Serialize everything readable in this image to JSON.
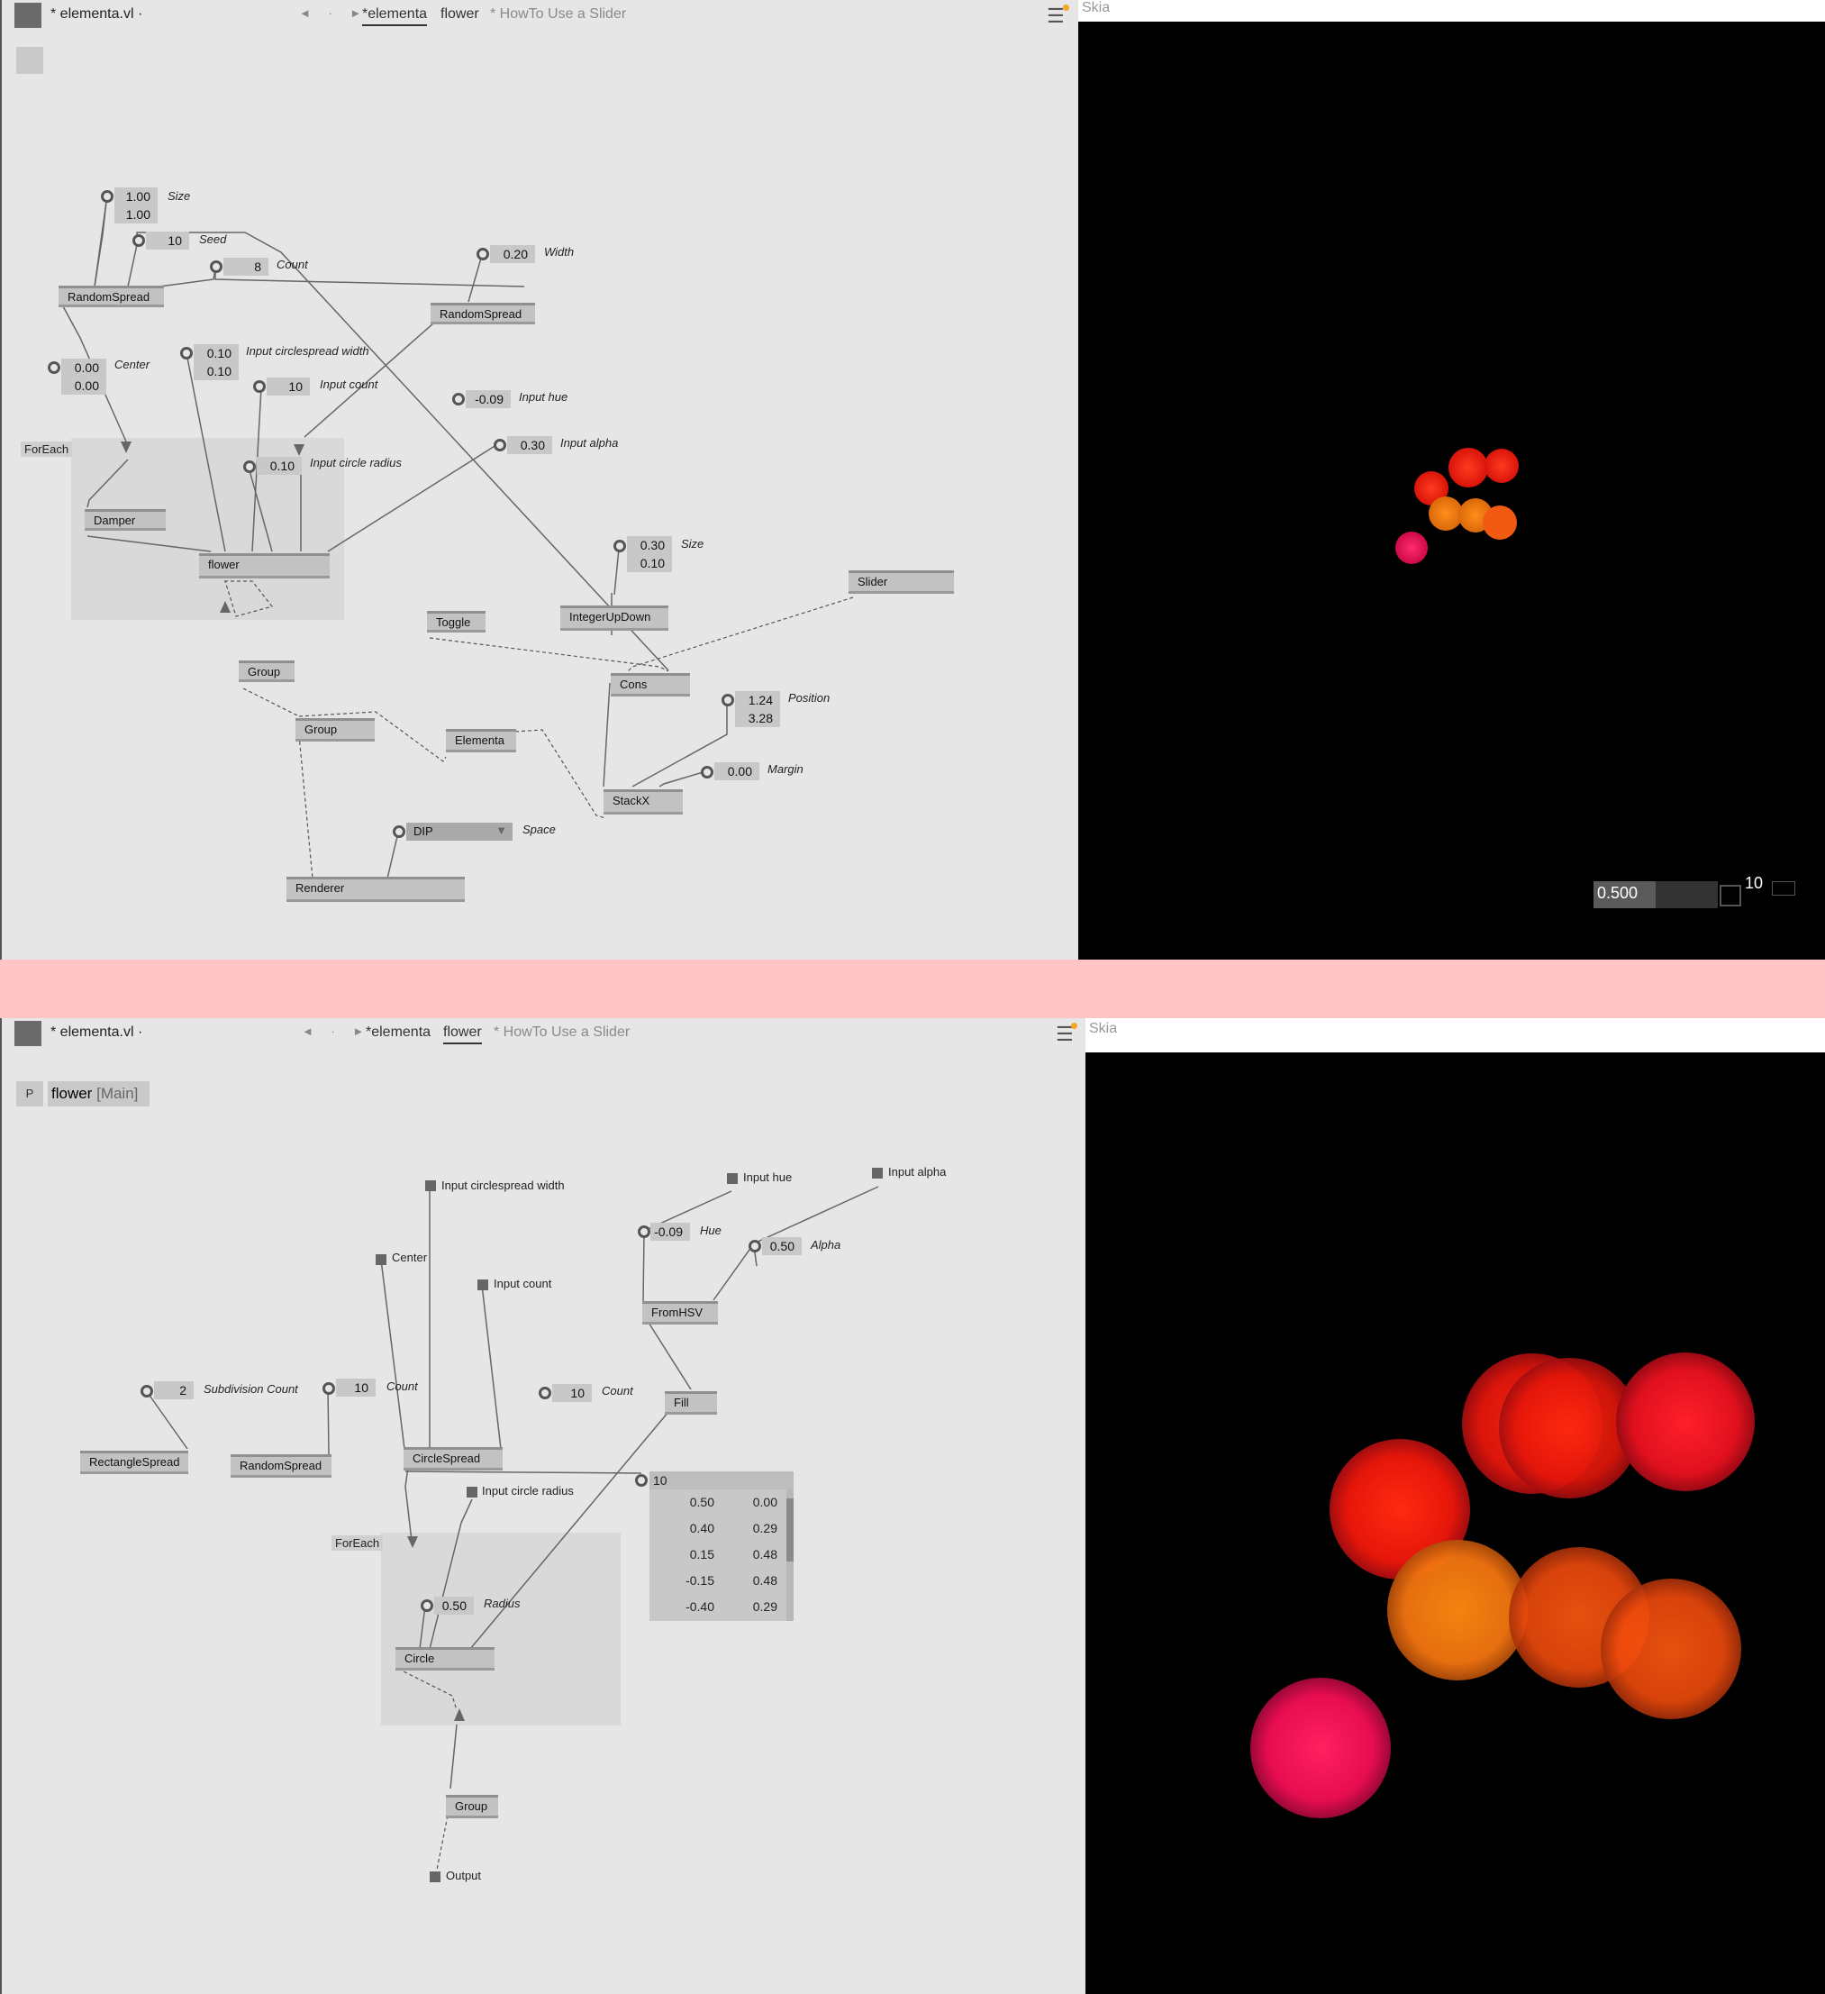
{
  "top": {
    "doc_title": "* elementa.vl ·",
    "nav_arrows": "◄ · ►",
    "tabs": [
      "*elementa",
      "flower",
      "* HowTo Use a Slider"
    ],
    "render_title": "Skia",
    "foreach_label": "ForEach",
    "nodes": {
      "randomspread1": "RandomSpread",
      "randomspread2": "RandomSpread",
      "damper": "Damper",
      "flower": "flower",
      "group1": "Group",
      "group2": "Group",
      "elementa": "Elementa",
      "renderer": "Renderer",
      "toggle": "Toggle",
      "integerupdown": "IntegerUpDown",
      "slider": "Slider",
      "cons": "Cons",
      "stackx": "StackX"
    },
    "iobox": {
      "size_x": "1.00",
      "size_y": "1.00",
      "size_label": "Size",
      "seed": "10",
      "seed_label": "Seed",
      "count": "8",
      "count_label": "Count",
      "width": "0.20",
      "width_label": "Width",
      "center_x": "0.00",
      "center_y": "0.00",
      "center_label": "Center",
      "csw_x": "0.10",
      "csw_y": "0.10",
      "csw_label": "Input circlespread width",
      "input_count": "10",
      "input_count_label": "Input count",
      "input_hue": "-0.09",
      "input_hue_label": "Input hue",
      "input_alpha": "0.30",
      "input_alpha_label": "Input alpha",
      "circle_radius": "0.10",
      "circle_radius_label": "Input circle radius",
      "size2_x": "0.30",
      "size2_y": "0.10",
      "size2_label": "Size",
      "position_x": "1.24",
      "position_y": "3.28",
      "position_label": "Position",
      "margin": "0.00",
      "margin_label": "Margin",
      "space": "DIP",
      "space_label": "Space"
    },
    "overlay": {
      "slider_value": "0.500",
      "int_value": "10",
      "slider_fill": 0.5
    }
  },
  "bottom": {
    "doc_title": "* elementa.vl ·",
    "nav_arrows": "◄ · ►",
    "tabs": [
      "*elementa",
      "flower",
      "* HowTo Use a Slider"
    ],
    "render_title": "Skia",
    "patch_button": "P",
    "patch_name": "flower",
    "patch_main": "[Main]",
    "foreach_label": "ForEach",
    "pads": {
      "csw": "Input circlespread width",
      "center": "Center",
      "input_count": "Input count",
      "input_hue": "Input hue",
      "input_alpha": "Input alpha",
      "circle_radius": "Input circle radius",
      "output": "Output"
    },
    "iobox": {
      "hue": "-0.09",
      "hue_label": "Hue",
      "alpha": "0.50",
      "alpha_label": "Alpha",
      "subdiv": "2",
      "subdiv_label": "Subdivision Count",
      "count1": "10",
      "count1_label": "Count",
      "count2": "10",
      "count2_label": "Count",
      "radius": "0.50",
      "radius_label": "Radius",
      "spread_count": "10"
    },
    "nodes": {
      "fromhsv": "FromHSV",
      "fill": "Fill",
      "rectanglespread": "RectangleSpread",
      "randomspread": "RandomSpread",
      "circlespread": "CircleSpread",
      "circle": "Circle",
      "group": "Group"
    },
    "spread_rows": [
      [
        "0.50",
        "0.00"
      ],
      [
        "0.40",
        "0.29"
      ],
      [
        "0.15",
        "0.48"
      ],
      [
        "-0.15",
        "0.48"
      ],
      [
        "-0.40",
        "0.29"
      ]
    ]
  },
  "colors": {
    "canvas": "#e6e6e6",
    "node": "#c2c2c2",
    "separator": "#ffc4c4",
    "render_bg": "#000000"
  }
}
